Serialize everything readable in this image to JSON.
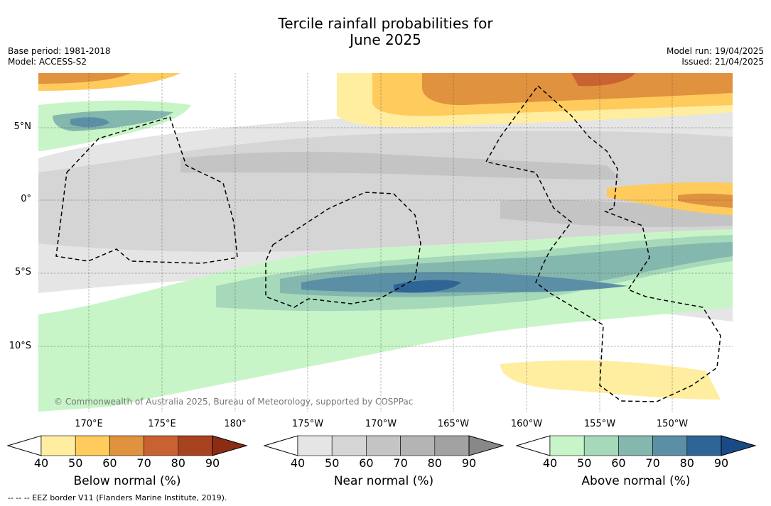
{
  "title_line1": "Tercile rainfall probabilities for",
  "title_line2": "June 2025",
  "meta_left": [
    "Base period: 1981-2018",
    "Model: ACCESS-S2"
  ],
  "meta_right": [
    "Model run: 19/04/2025",
    "Issued: 21/04/2025"
  ],
  "lat_labels": [
    "5°N",
    "0°",
    "5°S",
    "10°S"
  ],
  "lon_labels": [
    "170°E",
    "175°E",
    "180°",
    "175°W",
    "170°W",
    "165°W",
    "160°W",
    "155°W",
    "150°W"
  ],
  "copyright": "© Commonwealth of Australia 2025, Bureau of Meteorology, supported by COSPPac",
  "footnote": "-- -- -- EEZ border V11 (Flanders Marine Institute, 2019).",
  "colorbars": [
    {
      "label": "Below normal (%)",
      "ticks": [
        "40",
        "50",
        "60",
        "70",
        "80",
        "90"
      ],
      "colors": [
        "#ffeda0",
        "#fecb5c",
        "#e0923e",
        "#c96232",
        "#a8431f",
        "#8b2d15"
      ]
    },
    {
      "label": "Near normal (%)",
      "ticks": [
        "40",
        "50",
        "60",
        "70",
        "80",
        "90"
      ],
      "colors": [
        "#e5e5e5",
        "#d5d5d5",
        "#c4c4c4",
        "#b4b4b4",
        "#a2a2a2",
        "#888888"
      ]
    },
    {
      "label": "Above normal (%)",
      "ticks": [
        "40",
        "50",
        "60",
        "70",
        "80",
        "90"
      ],
      "colors": [
        "#c8f5c8",
        "#a6d8ba",
        "#84b7ad",
        "#5b8fa6",
        "#2f6496",
        "#1a4a86"
      ]
    }
  ]
}
